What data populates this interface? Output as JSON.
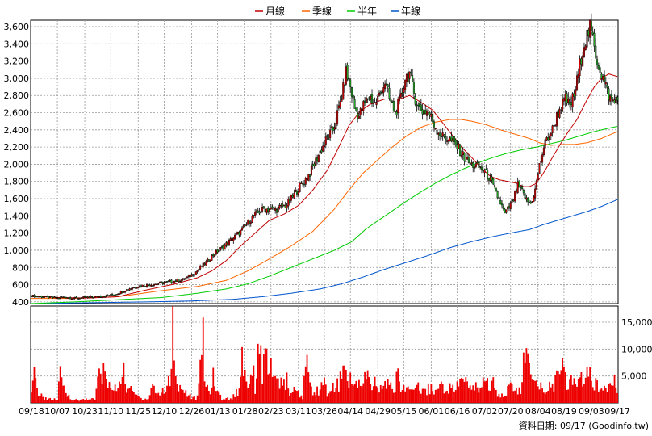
{
  "chart_data": {
    "type": "candlestick",
    "legend": [
      {
        "label": "月線",
        "color": "#c00000"
      },
      {
        "label": "季線",
        "color": "#ff6600"
      },
      {
        "label": "半年",
        "color": "#00cc00"
      },
      {
        "label": "年線",
        "color": "#0055cc"
      }
    ],
    "colors": {
      "up": "#cc0000",
      "down": "#22aa22",
      "volume": "#ee0000"
    },
    "price_axis": {
      "ylim": [
        380,
        3600
      ],
      "ticks": [
        "3,600",
        "3,400",
        "3,200",
        "3,000",
        "2,800",
        "2,600",
        "2,400",
        "2,200",
        "2,000",
        "1,800",
        "1,600",
        "1,400",
        "1,200",
        "1,000",
        "800",
        "600",
        "400"
      ]
    },
    "volume_axis": {
      "ylim": [
        0,
        18000
      ],
      "ticks": [
        "15,000",
        "10,000",
        "5,000"
      ]
    },
    "x_ticks": [
      "09/18",
      "10/07",
      "10/23",
      "11/10",
      "11/25",
      "12/10",
      "12/26",
      "01/13",
      "01/28",
      "02/23",
      "03/11",
      "03/26",
      "04/14",
      "04/29",
      "05/15",
      "06/01",
      "06/16",
      "07/02",
      "07/20",
      "08/04",
      "08/19",
      "09/03",
      "09/17"
    ],
    "source_label": "資料日期: 09/17  (Goodinfo.tw)",
    "price_keypoints": [
      [
        0,
        470
      ],
      [
        5,
        465
      ],
      [
        10,
        455
      ],
      [
        14,
        450
      ],
      [
        18,
        445
      ],
      [
        24,
        455
      ],
      [
        30,
        440
      ],
      [
        37,
        450
      ],
      [
        45,
        460
      ],
      [
        52,
        470
      ],
      [
        58,
        490
      ],
      [
        63,
        520
      ],
      [
        68,
        555
      ],
      [
        72,
        575
      ],
      [
        77,
        590
      ],
      [
        82,
        600
      ],
      [
        87,
        610
      ],
      [
        92,
        625
      ],
      [
        98,
        640
      ],
      [
        105,
        660
      ],
      [
        110,
        700
      ],
      [
        114,
        750
      ],
      [
        117,
        800
      ],
      [
        121,
        860
      ],
      [
        125,
        930
      ],
      [
        129,
        990
      ],
      [
        133,
        1040
      ],
      [
        137,
        1100
      ],
      [
        141,
        1160
      ],
      [
        145,
        1220
      ],
      [
        149,
        1300
      ],
      [
        153,
        1380
      ],
      [
        157,
        1440
      ],
      [
        161,
        1480
      ],
      [
        165,
        1480
      ],
      [
        169,
        1470
      ],
      [
        173,
        1500
      ],
      [
        177,
        1530
      ],
      [
        181,
        1620
      ],
      [
        185,
        1720
      ],
      [
        189,
        1800
      ],
      [
        193,
        1900
      ],
      [
        197,
        2040
      ],
      [
        201,
        2180
      ],
      [
        205,
        2300
      ],
      [
        209,
        2400
      ],
      [
        213,
        2640
      ],
      [
        216,
        2870
      ],
      [
        218,
        3070
      ],
      [
        221,
        2900
      ],
      [
        224,
        2650
      ],
      [
        227,
        2560
      ],
      [
        230,
        2680
      ],
      [
        234,
        2800
      ],
      [
        238,
        2700
      ],
      [
        242,
        2830
      ],
      [
        245,
        2960
      ],
      [
        248,
        2760
      ],
      [
        252,
        2600
      ],
      [
        256,
        2770
      ],
      [
        259,
        3010
      ],
      [
        262,
        3060
      ],
      [
        265,
        2820
      ],
      [
        268,
        2670
      ],
      [
        271,
        2620
      ],
      [
        275,
        2620
      ],
      [
        278,
        2500
      ],
      [
        281,
        2400
      ],
      [
        285,
        2320
      ],
      [
        289,
        2300
      ],
      [
        292,
        2250
      ],
      [
        296,
        2180
      ],
      [
        300,
        2080
      ],
      [
        304,
        2000
      ],
      [
        308,
        1980
      ],
      [
        311,
        1960
      ],
      [
        314,
        1920
      ],
      [
        317,
        1850
      ],
      [
        321,
        1700
      ],
      [
        325,
        1550
      ],
      [
        328,
        1420
      ],
      [
        331,
        1500
      ],
      [
        334,
        1600
      ],
      [
        337,
        1750
      ],
      [
        340,
        1680
      ],
      [
        343,
        1580
      ],
      [
        346,
        1540
      ],
      [
        349,
        1700
      ],
      [
        352,
        1980
      ],
      [
        355,
        2200
      ],
      [
        358,
        2320
      ],
      [
        361,
        2400
      ],
      [
        364,
        2560
      ],
      [
        367,
        2680
      ],
      [
        370,
        2750
      ],
      [
        373,
        2680
      ],
      [
        376,
        2800
      ],
      [
        379,
        3050
      ],
      [
        382,
        3350
      ],
      [
        385,
        3500
      ],
      [
        387,
        3580
      ],
      [
        389,
        3450
      ],
      [
        392,
        3200
      ],
      [
        395,
        3050
      ],
      [
        398,
        2900
      ],
      [
        401,
        2760
      ],
      [
        404,
        2720
      ],
      [
        406,
        2820
      ]
    ],
    "volume_keypoints": [
      [
        0,
        1500
      ],
      [
        2,
        5000
      ],
      [
        4,
        2500
      ],
      [
        7,
        1200
      ],
      [
        10,
        900
      ],
      [
        14,
        600
      ],
      [
        18,
        700
      ],
      [
        20,
        5000
      ],
      [
        22,
        3000
      ],
      [
        25,
        1500
      ],
      [
        28,
        800
      ],
      [
        30,
        600
      ],
      [
        33,
        400
      ],
      [
        36,
        700
      ],
      [
        40,
        800
      ],
      [
        44,
        600
      ],
      [
        46,
        4000
      ],
      [
        48,
        6000
      ],
      [
        50,
        5500
      ],
      [
        52,
        4000
      ],
      [
        54,
        3500
      ],
      [
        56,
        2200
      ],
      [
        58,
        2500
      ],
      [
        60,
        3000
      ],
      [
        63,
        6500
      ],
      [
        66,
        3000
      ],
      [
        70,
        2000
      ],
      [
        74,
        1200
      ],
      [
        78,
        700
      ],
      [
        81,
        900
      ],
      [
        84,
        3500
      ],
      [
        86,
        2000
      ],
      [
        89,
        1500
      ],
      [
        91,
        2500
      ],
      [
        93,
        2000
      ],
      [
        95,
        4000
      ],
      [
        97,
        5500
      ],
      [
        98,
        18000
      ],
      [
        100,
        5000
      ],
      [
        102,
        3000
      ],
      [
        105,
        2500
      ],
      [
        108,
        1800
      ],
      [
        112,
        800
      ],
      [
        115,
        1000
      ],
      [
        118,
        8000
      ],
      [
        119,
        13000
      ],
      [
        120,
        5000
      ],
      [
        123,
        2000
      ],
      [
        126,
        4500
      ],
      [
        129,
        2000
      ],
      [
        132,
        900
      ],
      [
        135,
        700
      ],
      [
        138,
        900
      ],
      [
        141,
        1500
      ],
      [
        144,
        2500
      ],
      [
        146,
        9000
      ],
      [
        148,
        5500
      ],
      [
        150,
        3500
      ],
      [
        153,
        7000
      ],
      [
        155,
        3000
      ],
      [
        158,
        13000
      ],
      [
        160,
        5500
      ],
      [
        163,
        9000
      ],
      [
        165,
        7000
      ],
      [
        168,
        3500
      ],
      [
        171,
        5000
      ],
      [
        174,
        2500
      ],
      [
        177,
        4000
      ],
      [
        180,
        1500
      ],
      [
        183,
        2500
      ],
      [
        186,
        1500
      ],
      [
        188,
        1000
      ],
      [
        191,
        9000
      ],
      [
        193,
        3000
      ],
      [
        196,
        2000
      ],
      [
        199,
        2500
      ],
      [
        202,
        4000
      ],
      [
        205,
        2000
      ],
      [
        208,
        3000
      ],
      [
        211,
        2500
      ],
      [
        214,
        4500
      ],
      [
        217,
        5500
      ],
      [
        220,
        5000
      ],
      [
        223,
        2500
      ],
      [
        226,
        4000
      ],
      [
        229,
        3000
      ],
      [
        232,
        5000
      ],
      [
        235,
        3000
      ],
      [
        238,
        3500
      ],
      [
        241,
        2500
      ],
      [
        244,
        3000
      ],
      [
        247,
        3500
      ],
      [
        250,
        2500
      ],
      [
        254,
        4500
      ],
      [
        258,
        2500
      ],
      [
        262,
        3000
      ],
      [
        265,
        2500
      ],
      [
        268,
        3500
      ],
      [
        271,
        2000
      ],
      [
        274,
        2500
      ],
      [
        277,
        3000
      ],
      [
        280,
        2000
      ],
      [
        283,
        3500
      ],
      [
        286,
        2500
      ],
      [
        289,
        3000
      ],
      [
        292,
        2500
      ],
      [
        296,
        3500
      ],
      [
        299,
        4000
      ],
      [
        303,
        3500
      ],
      [
        306,
        3000
      ],
      [
        310,
        2500
      ],
      [
        313,
        5000
      ],
      [
        316,
        3500
      ],
      [
        319,
        4000
      ],
      [
        323,
        2000
      ],
      [
        326,
        1500
      ],
      [
        329,
        2000
      ],
      [
        332,
        3000
      ],
      [
        336,
        2500
      ],
      [
        339,
        2000
      ],
      [
        342,
        10000
      ],
      [
        345,
        6000
      ],
      [
        347,
        4000
      ],
      [
        350,
        3000
      ],
      [
        353,
        3500
      ],
      [
        356,
        2500
      ],
      [
        359,
        3000
      ],
      [
        362,
        3500
      ],
      [
        365,
        5000
      ],
      [
        368,
        6000
      ],
      [
        371,
        3500
      ],
      [
        374,
        4500
      ],
      [
        377,
        3000
      ],
      [
        380,
        5000
      ],
      [
        383,
        4500
      ],
      [
        386,
        5500
      ],
      [
        389,
        3000
      ],
      [
        392,
        3500
      ],
      [
        395,
        2500
      ],
      [
        398,
        3000
      ],
      [
        401,
        4000
      ],
      [
        404,
        6000
      ],
      [
        406,
        3000
      ]
    ],
    "ma_month_keypoints": [
      [
        0,
        465
      ],
      [
        20,
        450
      ],
      [
        40,
        445
      ],
      [
        60,
        460
      ],
      [
        80,
        540
      ],
      [
        100,
        610
      ],
      [
        115,
        680
      ],
      [
        125,
        760
      ],
      [
        135,
        880
      ],
      [
        145,
        1050
      ],
      [
        155,
        1200
      ],
      [
        165,
        1350
      ],
      [
        175,
        1420
      ],
      [
        185,
        1520
      ],
      [
        195,
        1700
      ],
      [
        205,
        1930
      ],
      [
        213,
        2200
      ],
      [
        220,
        2450
      ],
      [
        228,
        2620
      ],
      [
        235,
        2700
      ],
      [
        245,
        2760
      ],
      [
        255,
        2760
      ],
      [
        262,
        2800
      ],
      [
        270,
        2720
      ],
      [
        278,
        2630
      ],
      [
        285,
        2480
      ],
      [
        292,
        2330
      ],
      [
        298,
        2200
      ],
      [
        305,
        2080
      ],
      [
        312,
        1950
      ],
      [
        318,
        1860
      ],
      [
        324,
        1820
      ],
      [
        330,
        1800
      ],
      [
        336,
        1780
      ],
      [
        341,
        1740
      ],
      [
        345,
        1740
      ],
      [
        349,
        1770
      ],
      [
        353,
        1850
      ],
      [
        357,
        1960
      ],
      [
        361,
        2080
      ],
      [
        366,
        2220
      ],
      [
        372,
        2380
      ],
      [
        378,
        2520
      ],
      [
        384,
        2720
      ],
      [
        390,
        2900
      ],
      [
        395,
        3000
      ],
      [
        400,
        3050
      ],
      [
        406,
        3020
      ]
    ],
    "ma_quarter_keypoints": [
      [
        0,
        440
      ],
      [
        30,
        440
      ],
      [
        60,
        460
      ],
      [
        90,
        530
      ],
      [
        115,
        580
      ],
      [
        135,
        650
      ],
      [
        150,
        760
      ],
      [
        165,
        900
      ],
      [
        180,
        1050
      ],
      [
        195,
        1220
      ],
      [
        210,
        1480
      ],
      [
        220,
        1700
      ],
      [
        230,
        1900
      ],
      [
        240,
        2050
      ],
      [
        250,
        2200
      ],
      [
        260,
        2330
      ],
      [
        270,
        2430
      ],
      [
        280,
        2490
      ],
      [
        290,
        2520
      ],
      [
        298,
        2520
      ],
      [
        305,
        2500
      ],
      [
        315,
        2460
      ],
      [
        325,
        2400
      ],
      [
        335,
        2350
      ],
      [
        345,
        2300
      ],
      [
        352,
        2250
      ],
      [
        360,
        2220
      ],
      [
        368,
        2230
      ],
      [
        376,
        2230
      ],
      [
        385,
        2250
      ],
      [
        395,
        2300
      ],
      [
        406,
        2380
      ]
    ],
    "ma_half_keypoints": [
      [
        0,
        380
      ],
      [
        30,
        400
      ],
      [
        60,
        425
      ],
      [
        90,
        450
      ],
      [
        115,
        500
      ],
      [
        135,
        550
      ],
      [
        150,
        610
      ],
      [
        165,
        700
      ],
      [
        180,
        800
      ],
      [
        195,
        900
      ],
      [
        210,
        1000
      ],
      [
        222,
        1100
      ],
      [
        232,
        1250
      ],
      [
        245,
        1400
      ],
      [
        258,
        1550
      ],
      [
        270,
        1680
      ],
      [
        280,
        1780
      ],
      [
        290,
        1870
      ],
      [
        300,
        1950
      ],
      [
        310,
        2020
      ],
      [
        320,
        2080
      ],
      [
        330,
        2130
      ],
      [
        340,
        2170
      ],
      [
        350,
        2200
      ],
      [
        360,
        2240
      ],
      [
        370,
        2280
      ],
      [
        380,
        2330
      ],
      [
        390,
        2380
      ],
      [
        400,
        2420
      ],
      [
        406,
        2440
      ]
    ],
    "ma_year_keypoints": [
      [
        0,
        380
      ],
      [
        40,
        390
      ],
      [
        80,
        400
      ],
      [
        110,
        410
      ],
      [
        140,
        430
      ],
      [
        160,
        460
      ],
      [
        180,
        500
      ],
      [
        200,
        550
      ],
      [
        215,
        610
      ],
      [
        230,
        690
      ],
      [
        245,
        780
      ],
      [
        260,
        860
      ],
      [
        275,
        940
      ],
      [
        290,
        1030
      ],
      [
        305,
        1100
      ],
      [
        320,
        1160
      ],
      [
        335,
        1210
      ],
      [
        345,
        1240
      ],
      [
        355,
        1300
      ],
      [
        365,
        1350
      ],
      [
        375,
        1400
      ],
      [
        385,
        1450
      ],
      [
        395,
        1510
      ],
      [
        406,
        1590
      ]
    ]
  }
}
